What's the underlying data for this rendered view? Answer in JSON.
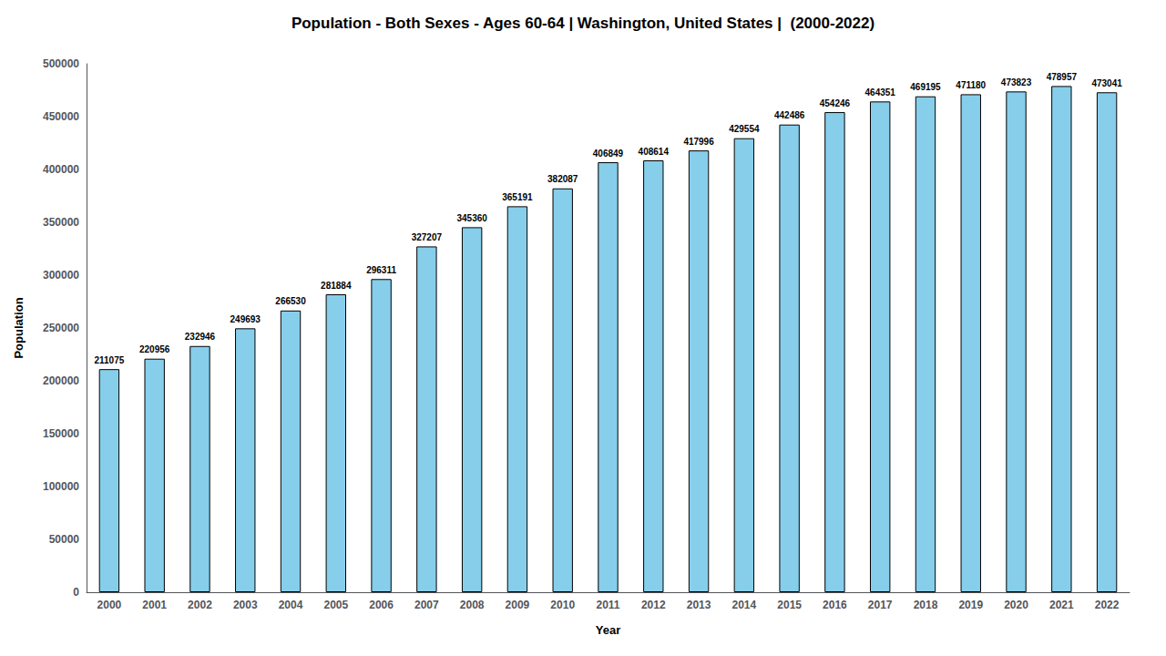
{
  "chart_data": {
    "type": "bar",
    "title": "Population - Both Sexes - Ages 60-64 | Washington, United States |  (2000-2022)",
    "x_label": "Year",
    "y_label": "Population",
    "categories": [
      "2000",
      "2001",
      "2002",
      "2003",
      "2004",
      "2005",
      "2006",
      "2007",
      "2008",
      "2009",
      "2010",
      "2011",
      "2012",
      "2013",
      "2014",
      "2015",
      "2016",
      "2017",
      "2018",
      "2019",
      "2020",
      "2021",
      "2022"
    ],
    "values": [
      211075,
      220956,
      232946,
      249693,
      266530,
      281884,
      296311,
      327207,
      345360,
      365191,
      382087,
      406849,
      408614,
      417996,
      429554,
      442486,
      454246,
      464351,
      469195,
      471180,
      473823,
      478957,
      473041
    ],
    "color": "#87CEEB",
    "ylim": [
      0,
      500000
    ],
    "yticks": [
      0,
      50000,
      100000,
      150000,
      200000,
      250000,
      300000,
      350000,
      400000,
      450000,
      500000
    ],
    "grid": false,
    "data_labels": true
  }
}
